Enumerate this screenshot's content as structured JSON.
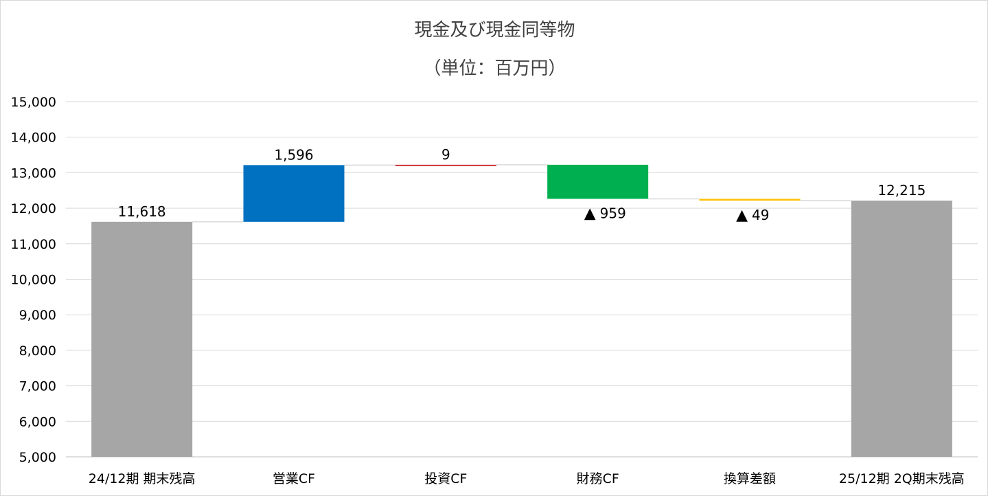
{
  "chart_data": {
    "type": "bar",
    "subtype": "waterfall",
    "title": "現金及び現金同等物",
    "subtitle": "（単位：百万円）",
    "categories": [
      "24/12期 期末残高",
      "営業CF",
      "投資CF",
      "財務CF",
      "換算差額",
      "25/12期 2Q期末残高"
    ],
    "values": [
      11618,
      1596,
      9,
      -959,
      -49,
      12215
    ],
    "kinds": [
      "total",
      "increase",
      "increase",
      "decrease",
      "decrease",
      "total"
    ],
    "data_labels": [
      "11,618",
      "1,596",
      "9",
      "959",
      "49",
      "12,215"
    ],
    "negative_marker": "▲",
    "colors": [
      "#a6a6a6",
      "#0070c0",
      "#c00000",
      "#00b050",
      "#ffc000",
      "#a6a6a6"
    ],
    "ylim": [
      5000,
      15000
    ],
    "ytick_step": 1000,
    "yticks": [
      "5,000",
      "6,000",
      "7,000",
      "8,000",
      "9,000",
      "10,000",
      "11,000",
      "12,000",
      "13,000",
      "14,000",
      "15,000"
    ],
    "grid": true,
    "connector_lines": true,
    "legend": "none"
  }
}
